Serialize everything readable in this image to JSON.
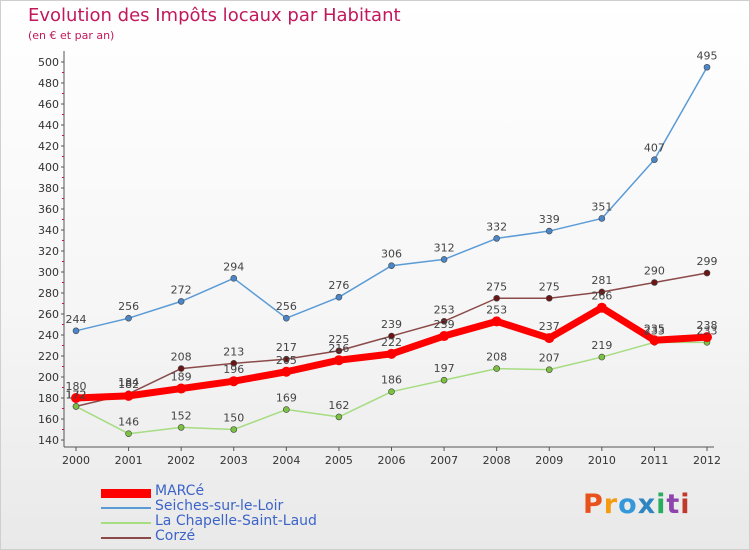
{
  "title": "Evolution des Impôts locaux par Habitant",
  "subtitle": "(en € et par an)",
  "logo": {
    "text": "Proxiti",
    "colors": [
      "#e8501c",
      "#f39c12",
      "#3498db",
      "#2e86c1",
      "#27ae60",
      "#8e44ad",
      "#c0392b"
    ]
  },
  "chart_data": {
    "type": "line",
    "title": "Evolution des Impôts locaux par Habitant",
    "subtitle": "(en € et par an)",
    "xlabel": "",
    "ylabel": "",
    "categories": [
      "2000",
      "2001",
      "2002",
      "2003",
      "2004",
      "2005",
      "2006",
      "2007",
      "2008",
      "2009",
      "2010",
      "2011",
      "2012"
    ],
    "ylim": [
      140,
      500
    ],
    "yticks": [
      140,
      160,
      180,
      200,
      220,
      240,
      260,
      280,
      300,
      320,
      340,
      360,
      380,
      400,
      420,
      440,
      460,
      480,
      500
    ],
    "grid": false,
    "legend_position": "bottom-left",
    "series": [
      {
        "name": "MARCé",
        "color": "#ff0000",
        "marker_color": "#ff0000",
        "width": 7,
        "values": [
          180,
          182,
          189,
          196,
          205,
          216,
          222,
          239,
          253,
          237,
          266,
          235,
          238
        ],
        "labels": [
          "180",
          "182",
          "189",
          "196",
          "205",
          "216",
          "222",
          "239",
          "253",
          "237",
          "266",
          "235",
          "238"
        ]
      },
      {
        "name": "Seiches-sur-le-Loir",
        "color": "#5b9bd5",
        "marker_color": "#4a86c8",
        "width": 1.5,
        "values": [
          244,
          256,
          272,
          294,
          256,
          276,
          306,
          312,
          332,
          339,
          351,
          407,
          495
        ],
        "labels": [
          "244",
          "256",
          "272",
          "294",
          "256",
          "276",
          "306",
          "312",
          "332",
          "339",
          "351",
          "407",
          "495"
        ]
      },
      {
        "name": "La Chapelle-Saint-Laud",
        "color": "#a6dc82",
        "marker_color": "#7bc142",
        "width": 1.5,
        "values": [
          172,
          146,
          152,
          150,
          169,
          162,
          186,
          197,
          208,
          207,
          219,
          233,
          233
        ],
        "labels": [
          "172",
          "146",
          "152",
          "150",
          "169",
          "162",
          "186",
          "197",
          "208",
          "207",
          "219",
          "233",
          "233"
        ]
      },
      {
        "name": "Corzé",
        "color": "#8b4a4a",
        "marker_color": "#6b1515",
        "width": 1.5,
        "values": [
          172,
          184,
          208,
          213,
          217,
          225,
          239,
          253,
          275,
          275,
          281,
          290,
          299
        ],
        "labels": [
          "172",
          "184",
          "208",
          "213",
          "217",
          "225",
          "239",
          "253",
          "275",
          "275",
          "281",
          "290",
          "299"
        ]
      }
    ]
  }
}
